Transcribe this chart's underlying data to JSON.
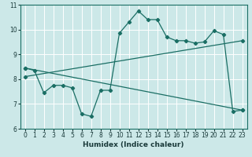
{
  "title": "",
  "xlabel": "Humidex (Indice chaleur)",
  "ylabel": "",
  "bg_color": "#cce8e8",
  "line_color": "#1a6e64",
  "grid_color": "#ffffff",
  "xlim": [
    -0.5,
    23.5
  ],
  "ylim": [
    6,
    11
  ],
  "xticks": [
    0,
    1,
    2,
    3,
    4,
    5,
    6,
    7,
    8,
    9,
    10,
    11,
    12,
    13,
    14,
    15,
    16,
    17,
    18,
    19,
    20,
    21,
    22,
    23
  ],
  "yticks": [
    6,
    7,
    8,
    9,
    10,
    11
  ],
  "line1_x": [
    0,
    1,
    2,
    3,
    4,
    5,
    6,
    7,
    8,
    9,
    10,
    11,
    12,
    13,
    14,
    15,
    16,
    17,
    18,
    19,
    20,
    21,
    22,
    23
  ],
  "line1_y": [
    8.45,
    8.35,
    7.45,
    7.75,
    7.75,
    7.65,
    6.6,
    6.5,
    7.55,
    7.55,
    9.85,
    10.3,
    10.75,
    10.4,
    10.4,
    9.7,
    9.55,
    9.55,
    9.45,
    9.5,
    9.95,
    9.8,
    6.7,
    6.75
  ],
  "line2_x": [
    0,
    23
  ],
  "line2_y": [
    8.1,
    9.55
  ],
  "line3_x": [
    0,
    23
  ],
  "line3_y": [
    8.45,
    6.75
  ],
  "xlabel_fontsize": 6.5,
  "tick_fontsize": 5.5
}
